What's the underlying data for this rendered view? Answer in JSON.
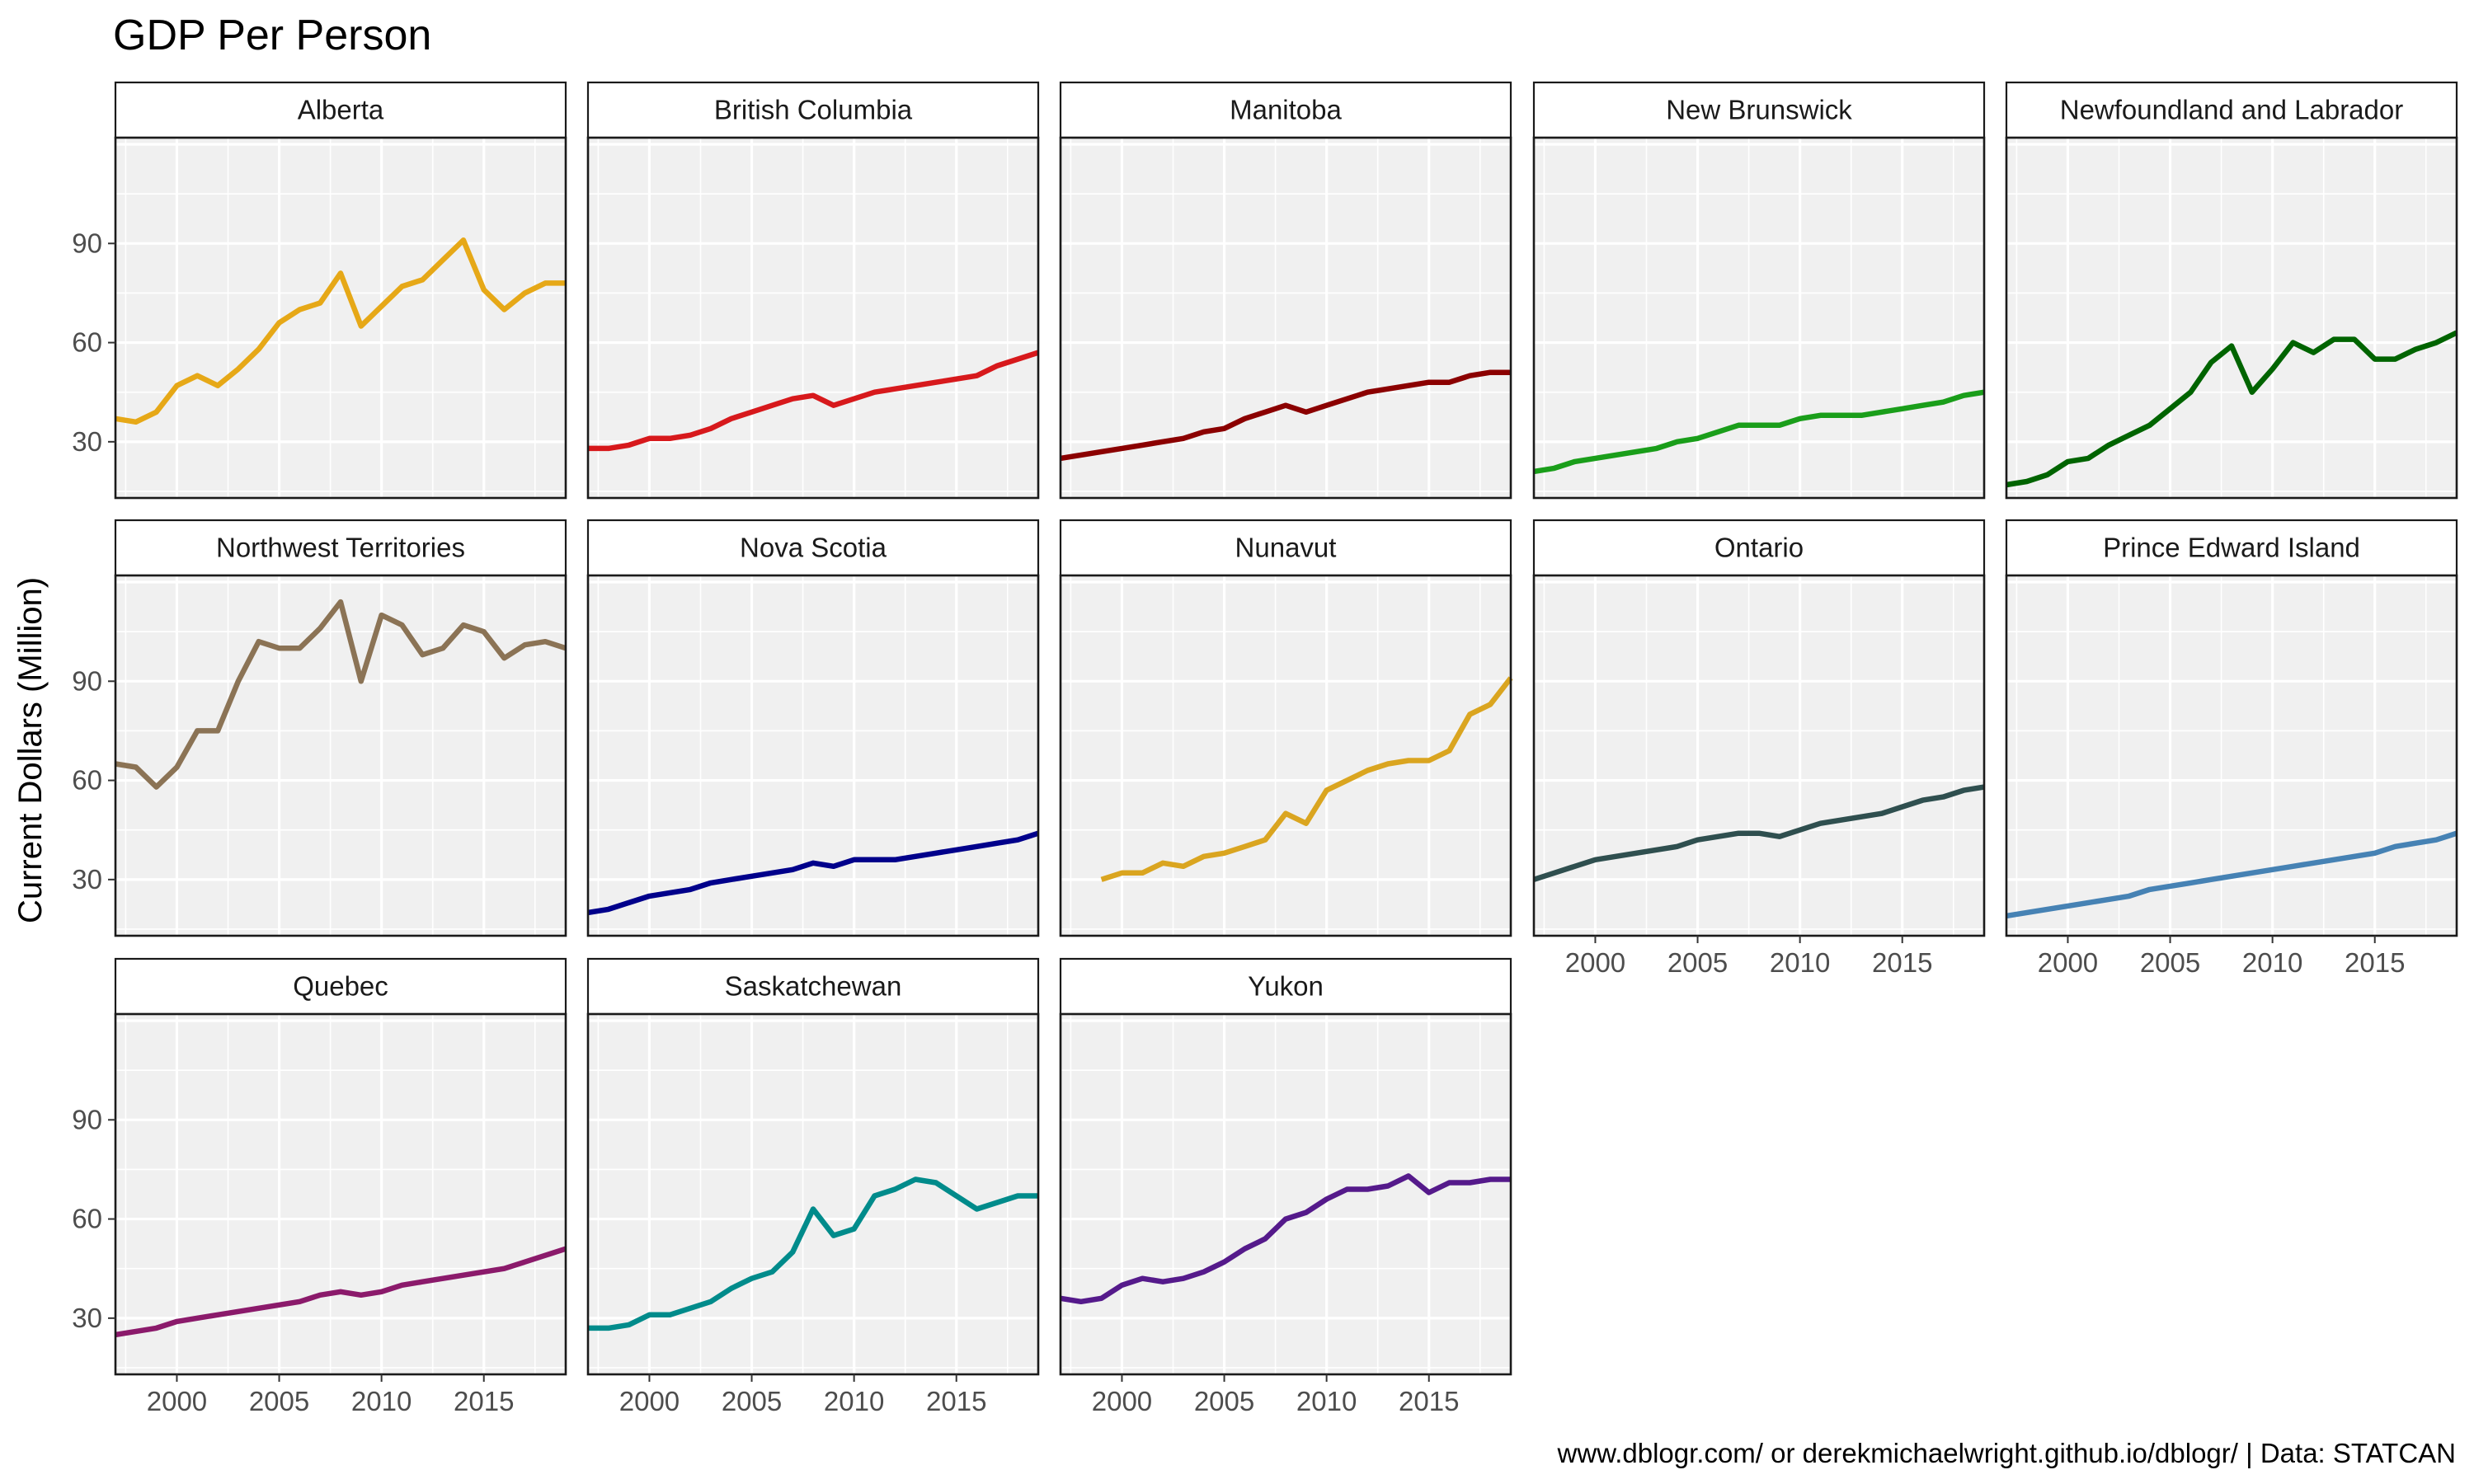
{
  "title": "GDP Per Person",
  "ylabel": "Current Dollars (Million)",
  "caption": "www.dblogr.com/ or derekmichaelwright.github.io/dblogr/ | Data: STATCAN",
  "chart_data": {
    "type": "line",
    "layout": "facet-wrap",
    "title": "GDP Per Person",
    "xlabel": "",
    "ylabel": "Current Dollars (Million)",
    "xlim": [
      1997,
      2019
    ],
    "ylim": [
      13,
      122
    ],
    "x_ticks": [
      2000,
      2005,
      2010,
      2015
    ],
    "y_ticks": [
      30,
      60,
      90
    ],
    "grid": true,
    "legend": "none",
    "panels": [
      {
        "name": "Alberta",
        "color": "#E6A817",
        "x": [
          1997,
          1998,
          1999,
          2000,
          2001,
          2002,
          2003,
          2004,
          2005,
          2006,
          2007,
          2008,
          2009,
          2010,
          2011,
          2012,
          2013,
          2014,
          2015,
          2016,
          2017,
          2018,
          2019
        ],
        "y": [
          37,
          36,
          39,
          47,
          50,
          47,
          52,
          58,
          66,
          70,
          72,
          81,
          65,
          71,
          77,
          79,
          85,
          91,
          76,
          70,
          75,
          78,
          78
        ]
      },
      {
        "name": "British Columbia",
        "color": "#D7191C",
        "x": [
          1997,
          1998,
          1999,
          2000,
          2001,
          2002,
          2003,
          2004,
          2005,
          2006,
          2007,
          2008,
          2009,
          2010,
          2011,
          2012,
          2013,
          2014,
          2015,
          2016,
          2017,
          2018,
          2019
        ],
        "y": [
          28,
          28,
          29,
          31,
          31,
          32,
          34,
          37,
          39,
          41,
          43,
          44,
          41,
          43,
          45,
          46,
          47,
          48,
          49,
          50,
          53,
          55,
          57
        ]
      },
      {
        "name": "Manitoba",
        "color": "#8B0000",
        "x": [
          1997,
          1998,
          1999,
          2000,
          2001,
          2002,
          2003,
          2004,
          2005,
          2006,
          2007,
          2008,
          2009,
          2010,
          2011,
          2012,
          2013,
          2014,
          2015,
          2016,
          2017,
          2018,
          2019
        ],
        "y": [
          25,
          26,
          27,
          28,
          29,
          30,
          31,
          33,
          34,
          37,
          39,
          41,
          39,
          41,
          43,
          45,
          46,
          47,
          48,
          48,
          50,
          51,
          51
        ]
      },
      {
        "name": "New Brunswick",
        "color": "#1A9E1A",
        "x": [
          1997,
          1998,
          1999,
          2000,
          2001,
          2002,
          2003,
          2004,
          2005,
          2006,
          2007,
          2008,
          2009,
          2010,
          2011,
          2012,
          2013,
          2014,
          2015,
          2016,
          2017,
          2018,
          2019
        ],
        "y": [
          21,
          22,
          24,
          25,
          26,
          27,
          28,
          30,
          31,
          33,
          35,
          35,
          35,
          37,
          38,
          38,
          38,
          39,
          40,
          41,
          42,
          44,
          45
        ]
      },
      {
        "name": "Newfoundland and Labrador",
        "color": "#006400",
        "x": [
          1997,
          1998,
          1999,
          2000,
          2001,
          2002,
          2003,
          2004,
          2005,
          2006,
          2007,
          2008,
          2009,
          2010,
          2011,
          2012,
          2013,
          2014,
          2015,
          2016,
          2017,
          2018,
          2019
        ],
        "y": [
          17,
          18,
          20,
          24,
          25,
          29,
          32,
          35,
          40,
          45,
          54,
          59,
          45,
          52,
          60,
          57,
          61,
          61,
          55,
          55,
          58,
          60,
          63
        ]
      },
      {
        "name": "Northwest Territories",
        "color": "#8B7355",
        "x": [
          1997,
          1998,
          1999,
          2000,
          2001,
          2002,
          2003,
          2004,
          2005,
          2006,
          2007,
          2008,
          2009,
          2010,
          2011,
          2012,
          2013,
          2014,
          2015,
          2016,
          2017,
          2018,
          2019
        ],
        "y": [
          65,
          64,
          58,
          64,
          75,
          75,
          90,
          102,
          100,
          100,
          106,
          114,
          90,
          110,
          107,
          98,
          100,
          107,
          105,
          97,
          101,
          102,
          100
        ]
      },
      {
        "name": "Nova Scotia",
        "color": "#00008B",
        "x": [
          1997,
          1998,
          1999,
          2000,
          2001,
          2002,
          2003,
          2004,
          2005,
          2006,
          2007,
          2008,
          2009,
          2010,
          2011,
          2012,
          2013,
          2014,
          2015,
          2016,
          2017,
          2018,
          2019
        ],
        "y": [
          20,
          21,
          23,
          25,
          26,
          27,
          29,
          30,
          31,
          32,
          33,
          35,
          34,
          36,
          36,
          36,
          37,
          38,
          39,
          40,
          41,
          42,
          44
        ]
      },
      {
        "name": "Nunavut",
        "color": "#DAA520",
        "x": [
          1999,
          2000,
          2001,
          2002,
          2003,
          2004,
          2005,
          2006,
          2007,
          2008,
          2009,
          2010,
          2011,
          2012,
          2013,
          2014,
          2015,
          2016,
          2017,
          2018,
          2019
        ],
        "y": [
          30,
          32,
          32,
          35,
          34,
          37,
          38,
          40,
          42,
          50,
          47,
          57,
          60,
          63,
          65,
          66,
          66,
          69,
          80,
          83,
          91
        ]
      },
      {
        "name": "Ontario",
        "color": "#2F4F4F",
        "x": [
          1997,
          1998,
          1999,
          2000,
          2001,
          2002,
          2003,
          2004,
          2005,
          2006,
          2007,
          2008,
          2009,
          2010,
          2011,
          2012,
          2013,
          2014,
          2015,
          2016,
          2017,
          2018,
          2019
        ],
        "y": [
          30,
          32,
          34,
          36,
          37,
          38,
          39,
          40,
          42,
          43,
          44,
          44,
          43,
          45,
          47,
          48,
          49,
          50,
          52,
          54,
          55,
          57,
          58
        ]
      },
      {
        "name": "Prince Edward Island",
        "color": "#4682B4",
        "x": [
          1997,
          1998,
          1999,
          2000,
          2001,
          2002,
          2003,
          2004,
          2005,
          2006,
          2007,
          2008,
          2009,
          2010,
          2011,
          2012,
          2013,
          2014,
          2015,
          2016,
          2017,
          2018,
          2019
        ],
        "y": [
          19,
          20,
          21,
          22,
          23,
          24,
          25,
          27,
          28,
          29,
          30,
          31,
          32,
          33,
          34,
          35,
          36,
          37,
          38,
          40,
          41,
          42,
          44
        ]
      },
      {
        "name": "Quebec",
        "color": "#8B1A6B",
        "x": [
          1997,
          1998,
          1999,
          2000,
          2001,
          2002,
          2003,
          2004,
          2005,
          2006,
          2007,
          2008,
          2009,
          2010,
          2011,
          2012,
          2013,
          2014,
          2015,
          2016,
          2017,
          2018,
          2019
        ],
        "y": [
          25,
          26,
          27,
          29,
          30,
          31,
          32,
          33,
          34,
          35,
          37,
          38,
          37,
          38,
          40,
          41,
          42,
          43,
          44,
          45,
          47,
          49,
          51
        ]
      },
      {
        "name": "Saskatchewan",
        "color": "#008B8B",
        "x": [
          1997,
          1998,
          1999,
          2000,
          2001,
          2002,
          2003,
          2004,
          2005,
          2006,
          2007,
          2008,
          2009,
          2010,
          2011,
          2012,
          2013,
          2014,
          2015,
          2016,
          2017,
          2018,
          2019
        ],
        "y": [
          27,
          27,
          28,
          31,
          31,
          33,
          35,
          39,
          42,
          44,
          50,
          63,
          55,
          57,
          67,
          69,
          72,
          71,
          67,
          63,
          65,
          67,
          67
        ]
      },
      {
        "name": "Yukon",
        "color": "#551A8B",
        "x": [
          1997,
          1998,
          1999,
          2000,
          2001,
          2002,
          2003,
          2004,
          2005,
          2006,
          2007,
          2008,
          2009,
          2010,
          2011,
          2012,
          2013,
          2014,
          2015,
          2016,
          2017,
          2018,
          2019
        ],
        "y": [
          36,
          35,
          36,
          40,
          42,
          41,
          42,
          44,
          47,
          51,
          54,
          60,
          62,
          66,
          69,
          69,
          70,
          73,
          68,
          71,
          71,
          72,
          72
        ]
      }
    ]
  }
}
